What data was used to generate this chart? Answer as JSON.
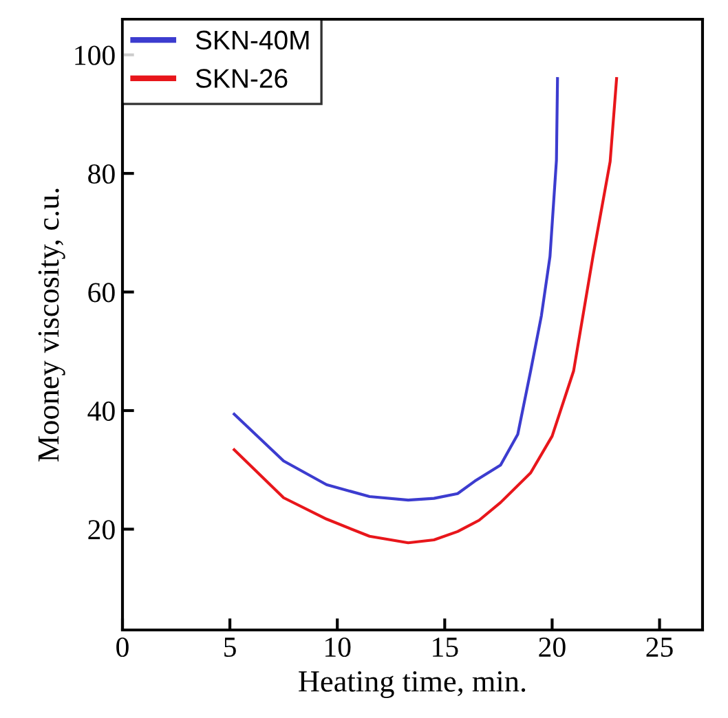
{
  "chart_data": {
    "type": "line",
    "xlabel": "Heating time, min.",
    "ylabel": "Mooney viscosity, c.u.",
    "xlim": [
      0,
      27
    ],
    "xticks": [
      0,
      5,
      10,
      15,
      20,
      25
    ],
    "ylim": [
      3,
      106
    ],
    "yticks": [
      20,
      40,
      60,
      80,
      100
    ],
    "grid": false,
    "legend": "top left",
    "line_style": "solid",
    "marker": "none",
    "series": [
      {
        "name": "SKN-40M",
        "color": "#3c3ccf",
        "x": [
          5.2,
          7.5,
          9.5,
          11.5,
          13.3,
          14.5,
          15.6,
          16.4,
          17.6,
          18.4,
          19.0,
          19.5,
          19.9,
          20.2,
          20.25
        ],
        "values": [
          39.4,
          31.5,
          27.5,
          25.5,
          24.9,
          25.2,
          26,
          28.1,
          30.8,
          36,
          46.7,
          56,
          66,
          82.2,
          96
        ]
      },
      {
        "name": "SKN-26",
        "color": "#e8161b",
        "x": [
          5.2,
          7.5,
          9.5,
          11.5,
          13.3,
          14.5,
          15.6,
          16.6,
          17.6,
          19,
          20.0,
          21.0,
          21.9,
          22.7,
          23.0
        ],
        "values": [
          33.4,
          25.3,
          21.7,
          18.8,
          17.7,
          18.2,
          19.6,
          21.5,
          24.5,
          29.5,
          35.7,
          46.7,
          66,
          82,
          96
        ]
      }
    ]
  }
}
